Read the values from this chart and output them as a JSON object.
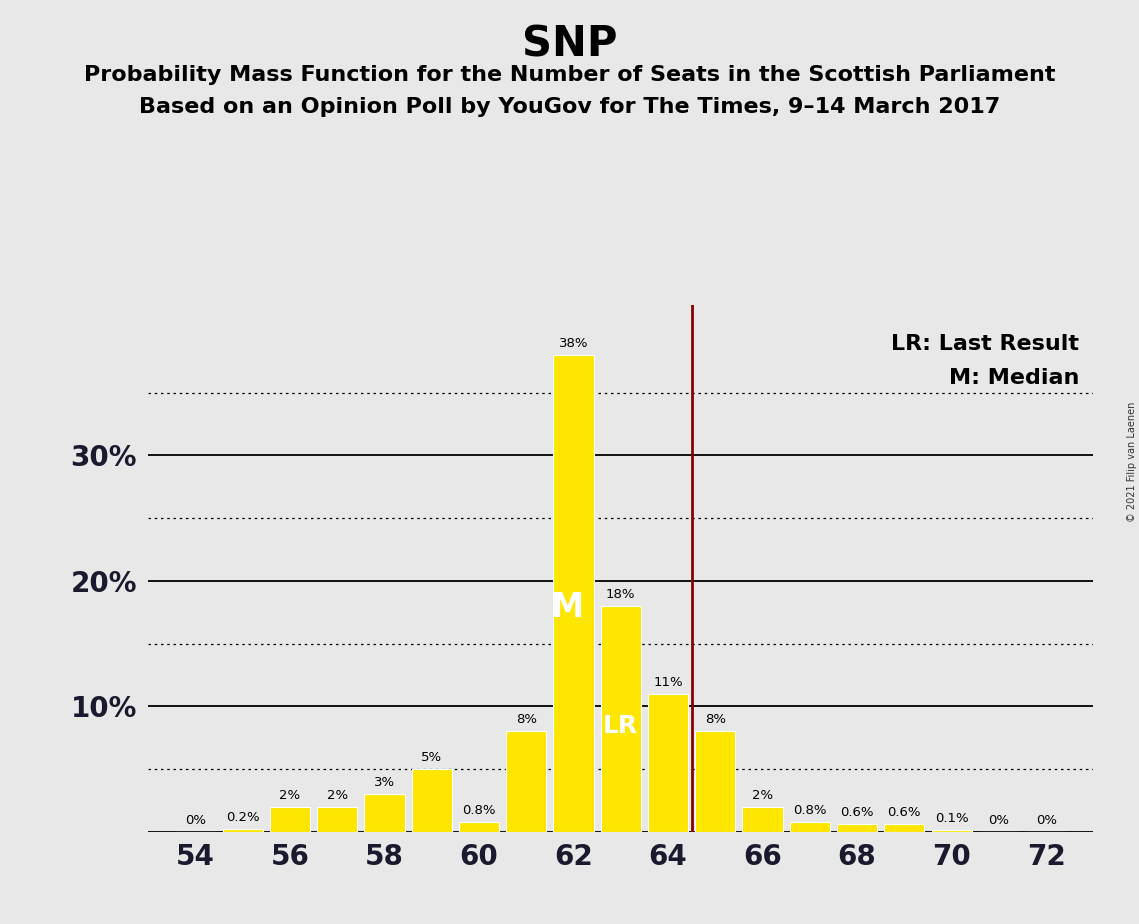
{
  "title": "SNP",
  "subtitle1": "Probability Mass Function for the Number of Seats in the Scottish Parliament",
  "subtitle2": "Based on an Opinion Poll by YouGov for The Times, 9–14 March 2017",
  "copyright": "© 2021 Filip van Laenen",
  "seats": [
    54,
    55,
    56,
    57,
    58,
    59,
    60,
    61,
    62,
    63,
    64,
    65,
    66,
    67,
    68,
    69,
    70,
    71,
    72
  ],
  "probabilities": [
    0.0,
    0.2,
    2.0,
    2.0,
    3.0,
    5.0,
    0.8,
    8.0,
    38.0,
    18.0,
    11.0,
    8.0,
    2.0,
    0.8,
    0.6,
    0.6,
    0.1,
    0.0,
    0.0
  ],
  "labels": [
    "0%",
    "0.2%",
    "2%",
    "2%",
    "3%",
    "5%",
    "0.8%",
    "8%",
    "38%",
    "18%",
    "11%",
    "8%",
    "2%",
    "0.8%",
    "0.6%",
    "0.6%",
    "0.1%",
    "0%",
    "0%"
  ],
  "bar_color": "#FFE600",
  "last_result_x": 64.5,
  "last_result_color": "#8B0000",
  "median_seat": 62,
  "lr_seat": 63,
  "background_color": "#E8E8E8",
  "xlim": [
    53.0,
    73.0
  ],
  "ylim": [
    0,
    42
  ],
  "solid_yticks": [
    0,
    10,
    20,
    30
  ],
  "dotted_yticks": [
    5,
    15,
    25,
    35
  ],
  "ytick_labels": [
    [
      10,
      "10%"
    ],
    [
      20,
      "20%"
    ],
    [
      30,
      "30%"
    ]
  ],
  "xticks": [
    54,
    56,
    58,
    60,
    62,
    64,
    66,
    68,
    70,
    72
  ],
  "legend_lr": "LR: Last Result",
  "legend_m": "M: Median",
  "title_fontsize": 30,
  "subtitle_fontsize": 16,
  "label_fontsize": 14,
  "axis_fontsize": 20,
  "bar_width": 0.85
}
